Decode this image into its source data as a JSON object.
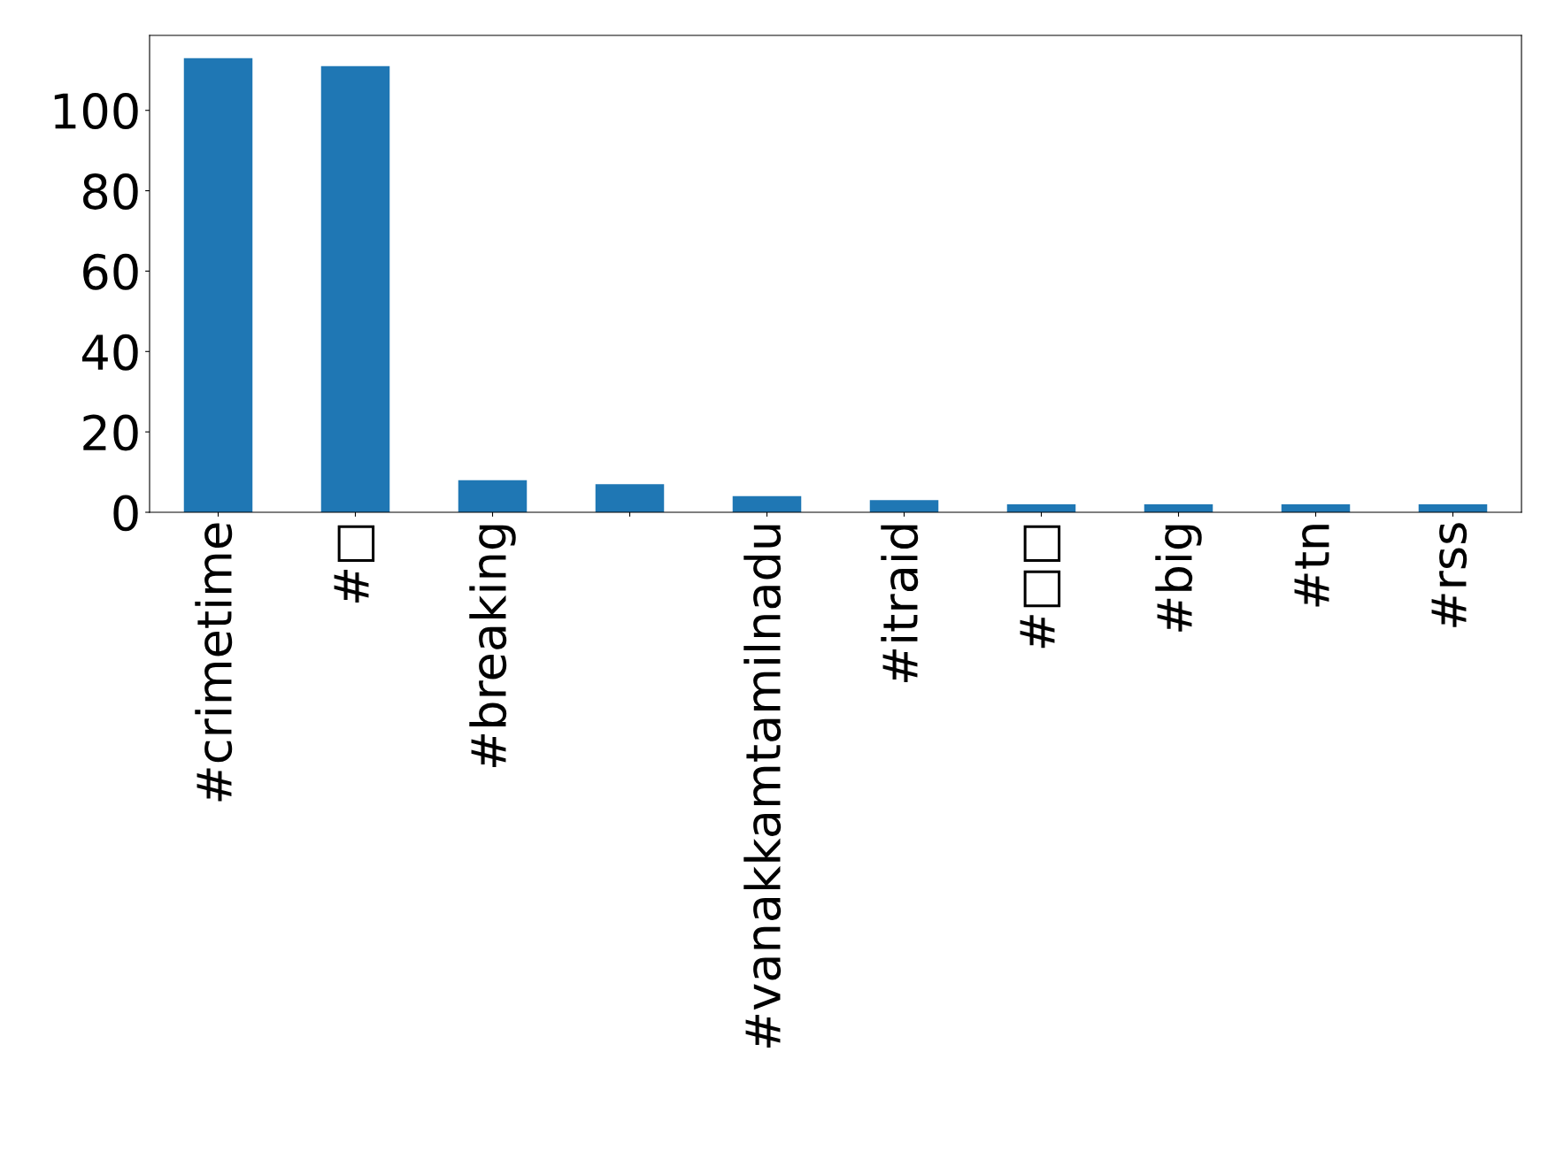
{
  "chart_data": {
    "type": "bar",
    "categories": [
      "#crimetime",
      "#□",
      "#breaking",
      null,
      "#vanakkamtamilnadu",
      "#itraid",
      "#□□",
      "#big",
      "#tn",
      "#rss"
    ],
    "values": [
      113,
      111,
      8,
      7,
      4,
      3,
      2,
      2,
      2,
      2
    ],
    "color": "#1f77b4",
    "ylim": [
      0,
      118.65
    ],
    "yticks": [
      0,
      20,
      40,
      60,
      80,
      100
    ],
    "grid": false
  }
}
